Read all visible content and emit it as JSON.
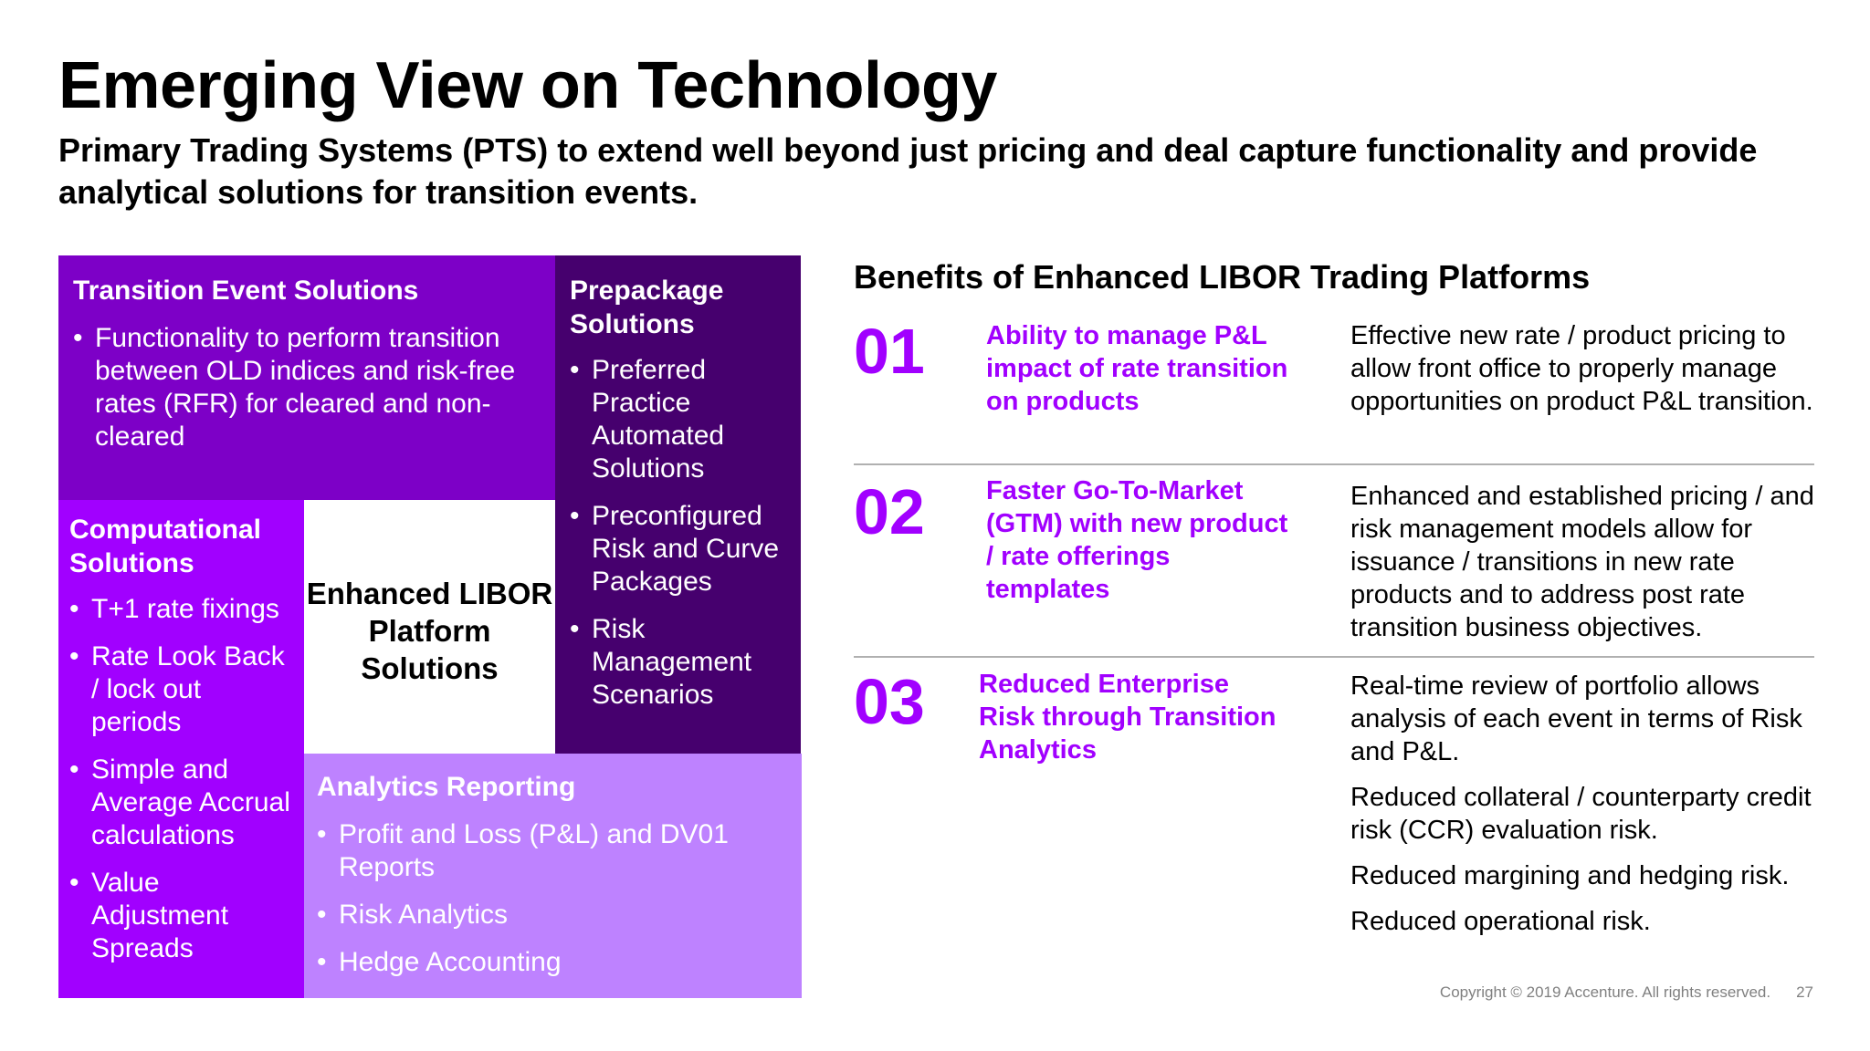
{
  "title": "Emerging View on Technology",
  "subtitle": "Primary Trading Systems (PTS) to extend well beyond just pricing and deal capture functionality and provide analytical solutions for transition events.",
  "diagram": {
    "transition": {
      "title": "Transition Event Solutions",
      "items": [
        "Functionality to perform transition between OLD indices and risk-free rates (RFR) for cleared and non-cleared"
      ]
    },
    "prepackage": {
      "title": "Prepackage Solutions",
      "items": [
        "Preferred Practice Automated Solutions",
        "Preconfigured Risk and Curve Packages",
        "Risk Management Scenarios"
      ]
    },
    "computational": {
      "title": "Computational Solutions",
      "items": [
        "T+1 rate fixings",
        "Rate Look Back / lock out periods",
        "Simple and Average Accrual calculations",
        "Value Adjustment Spreads"
      ]
    },
    "center": "Enhanced LIBOR Platform Solutions",
    "analytics": {
      "title": "Analytics Reporting",
      "items": [
        "Profit and Loss (P&L) and DV01 Reports",
        "Risk Analytics",
        "Hedge Accounting"
      ]
    }
  },
  "benefits": {
    "heading": "Benefits of Enhanced LIBOR Trading Platforms",
    "rows": [
      {
        "num": "01",
        "label": "Ability to manage P&L impact of rate transition on products",
        "descs": [
          "Effective new rate / product pricing to allow front office to properly manage opportunities on product P&L transition."
        ]
      },
      {
        "num": "02",
        "label": "Faster Go-To-Market (GTM) with new product / rate offerings templates",
        "descs": [
          "Enhanced and established pricing / and risk management models allow for issuance / transitions in new rate products and to address post rate transition business objectives."
        ]
      },
      {
        "num": "03",
        "label": "Reduced Enterprise Risk through Transition Analytics",
        "descs": [
          "Real-time review of portfolio allows analysis of each event in terms of Risk and P&L.",
          "Reduced collateral / counterparty credit risk (CCR) evaluation risk.",
          "Reduced margining and hedging risk.",
          "Reduced operational risk."
        ]
      }
    ]
  },
  "footer": {
    "copyright": "Copyright © 2019 Accenture. All rights reserved.",
    "page": "27"
  },
  "colors": {
    "purple_core": "#a100ff",
    "purple_mid": "#7d00c7",
    "purple_dark": "#46006e",
    "purple_light": "#be82ff"
  }
}
